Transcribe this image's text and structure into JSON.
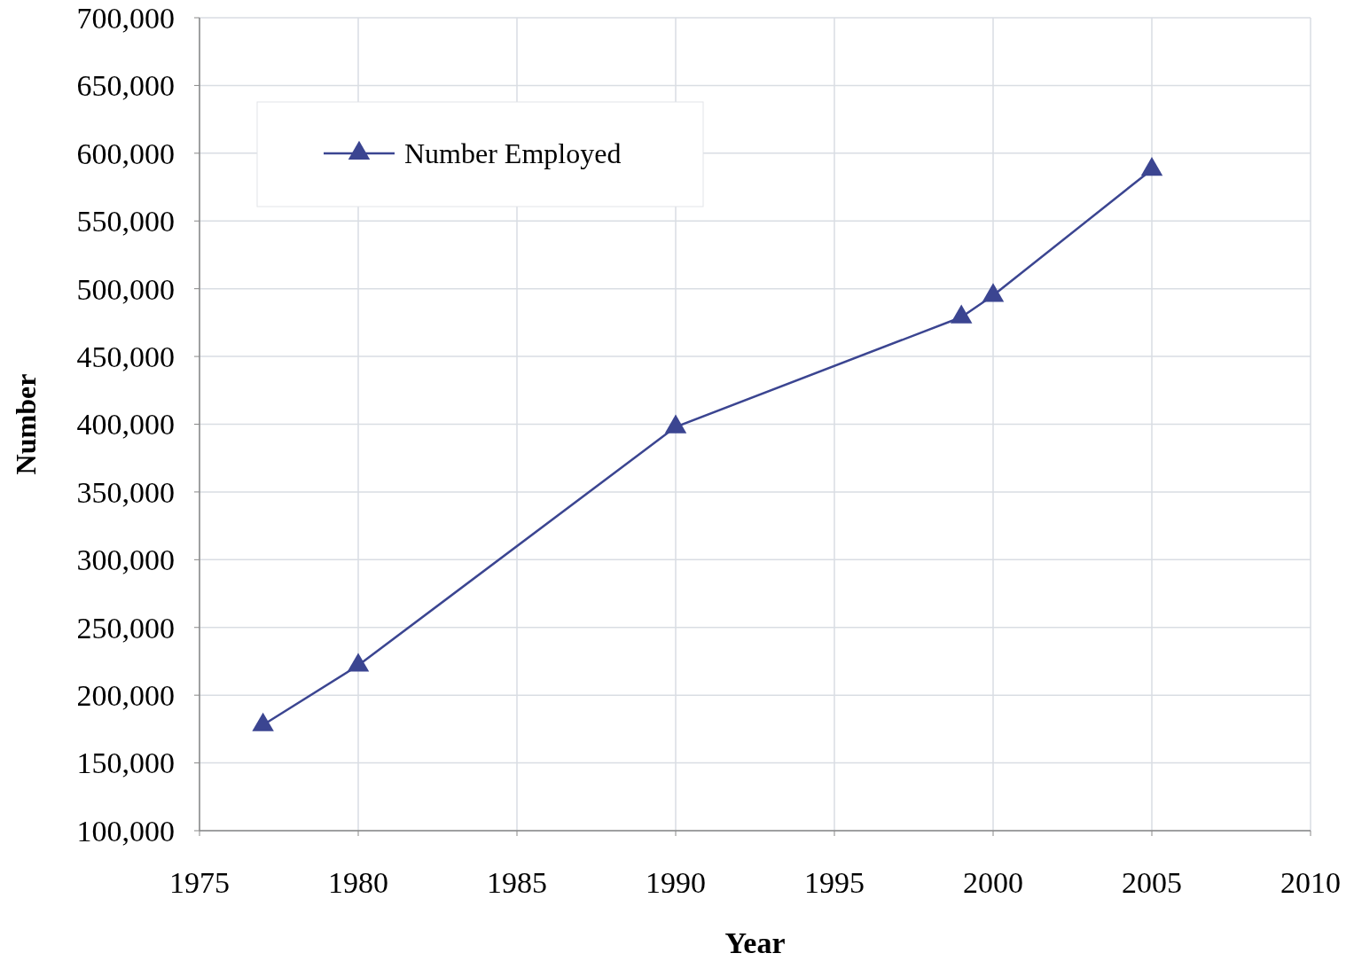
{
  "chart_data": {
    "type": "line",
    "xlabel": "Year",
    "ylabel": "Number",
    "x": [
      1977,
      1980,
      1990,
      1999,
      2000,
      2005
    ],
    "series": [
      {
        "name": "Number Employed",
        "color": "#3b4591",
        "values": [
          178000,
          222000,
          398000,
          479000,
          495000,
          588000
        ]
      }
    ],
    "xlim": [
      1975,
      2010
    ],
    "xticks": [
      1975,
      1980,
      1985,
      1990,
      1995,
      2000,
      2005,
      2010
    ],
    "ylim": [
      100000,
      700000
    ],
    "yticks": [
      {
        "value": 100000,
        "label": "100,000"
      },
      {
        "value": 150000,
        "label": "150,000"
      },
      {
        "value": 200000,
        "label": "200,000"
      },
      {
        "value": 250000,
        "label": "250,000"
      },
      {
        "value": 300000,
        "label": "300,000"
      },
      {
        "value": 350000,
        "label": "350,000"
      },
      {
        "value": 400000,
        "label": "400,000"
      },
      {
        "value": 450000,
        "label": "450,000"
      },
      {
        "value": 500000,
        "label": "500,000"
      },
      {
        "value": 550000,
        "label": "550,000"
      },
      {
        "value": 600000,
        "label": "600,000"
      },
      {
        "value": 650000,
        "label": "650,000"
      },
      {
        "value": 700000,
        "label": "700,000"
      }
    ],
    "grid": true,
    "legend": "top left",
    "marker": "triangle",
    "line_style": "solid"
  }
}
